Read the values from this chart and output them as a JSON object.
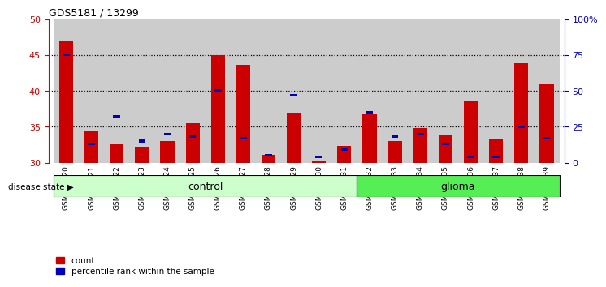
{
  "title": "GDS5181 / 13299",
  "samples": [
    "GSM769920",
    "GSM769921",
    "GSM769922",
    "GSM769923",
    "GSM769924",
    "GSM769925",
    "GSM769926",
    "GSM769927",
    "GSM769928",
    "GSM769929",
    "GSM769930",
    "GSM769931",
    "GSM769932",
    "GSM769933",
    "GSM769934",
    "GSM769935",
    "GSM769936",
    "GSM769937",
    "GSM769938",
    "GSM769939"
  ],
  "count_values": [
    47.0,
    34.3,
    32.7,
    32.2,
    33.0,
    35.5,
    45.0,
    43.6,
    31.1,
    37.0,
    30.2,
    32.3,
    36.8,
    33.0,
    34.8,
    33.9,
    38.5,
    33.2,
    43.8,
    41.0
  ],
  "percentile_values": [
    75,
    13,
    32,
    15,
    20,
    18,
    50,
    17,
    5,
    47,
    4,
    9,
    35,
    18,
    20,
    13,
    4,
    4,
    25,
    17
  ],
  "y_min": 30,
  "y_max": 50,
  "control_count": 12,
  "control_label": "control",
  "glioma_label": "glioma",
  "disease_state_label": "disease state",
  "bar_color_red": "#CC0000",
  "bar_color_blue": "#0000BB",
  "bar_width": 0.55,
  "bg_control": "#CCFFCC",
  "bg_glioma": "#55EE55",
  "legend_count": "count",
  "legend_pct": "percentile rank within the sample",
  "right_yticks": [
    0,
    25,
    50,
    75,
    100
  ],
  "right_yticklabels": [
    "0",
    "25",
    "50",
    "75",
    "100%"
  ],
  "left_yticks": [
    30,
    35,
    40,
    45,
    50
  ],
  "dotted_lines": [
    35,
    40,
    45
  ]
}
